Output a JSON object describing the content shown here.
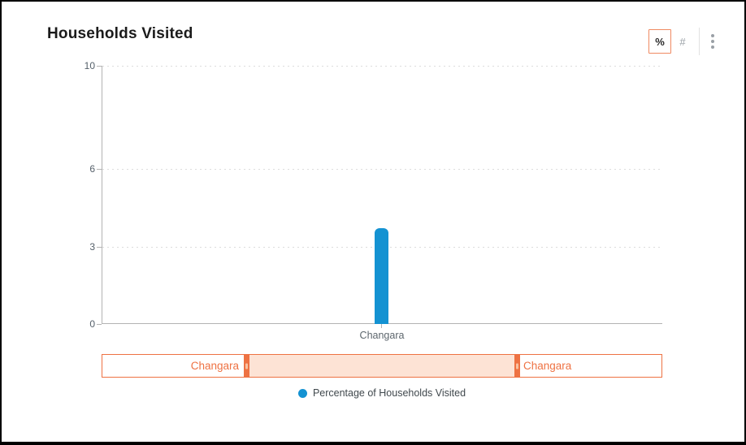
{
  "chart_data": {
    "type": "bar",
    "title": "Households Visited",
    "categories": [
      "Changara"
    ],
    "series": [
      {
        "name": "Percentage of Households Visited",
        "values": [
          3.7
        ],
        "color": "#1492d2"
      }
    ],
    "xlabel": "",
    "ylabel": "",
    "ylim": [
      0,
      10
    ],
    "yticks": [
      10,
      6,
      3,
      0
    ],
    "grid": "horizontal-dotted",
    "legend_position": "bottom-center"
  },
  "toolbar": {
    "percentage_toggle": "%",
    "count_toggle": "#",
    "active_toggle": "percentage",
    "more_options_icon": "kebab-vertical-dots",
    "active_border_color": "#ef8a62"
  },
  "range_selector": {
    "start_label": "Changara",
    "end_label": "Changara",
    "accent_color": "#ee7243",
    "fill_color": "#fde3d5"
  }
}
